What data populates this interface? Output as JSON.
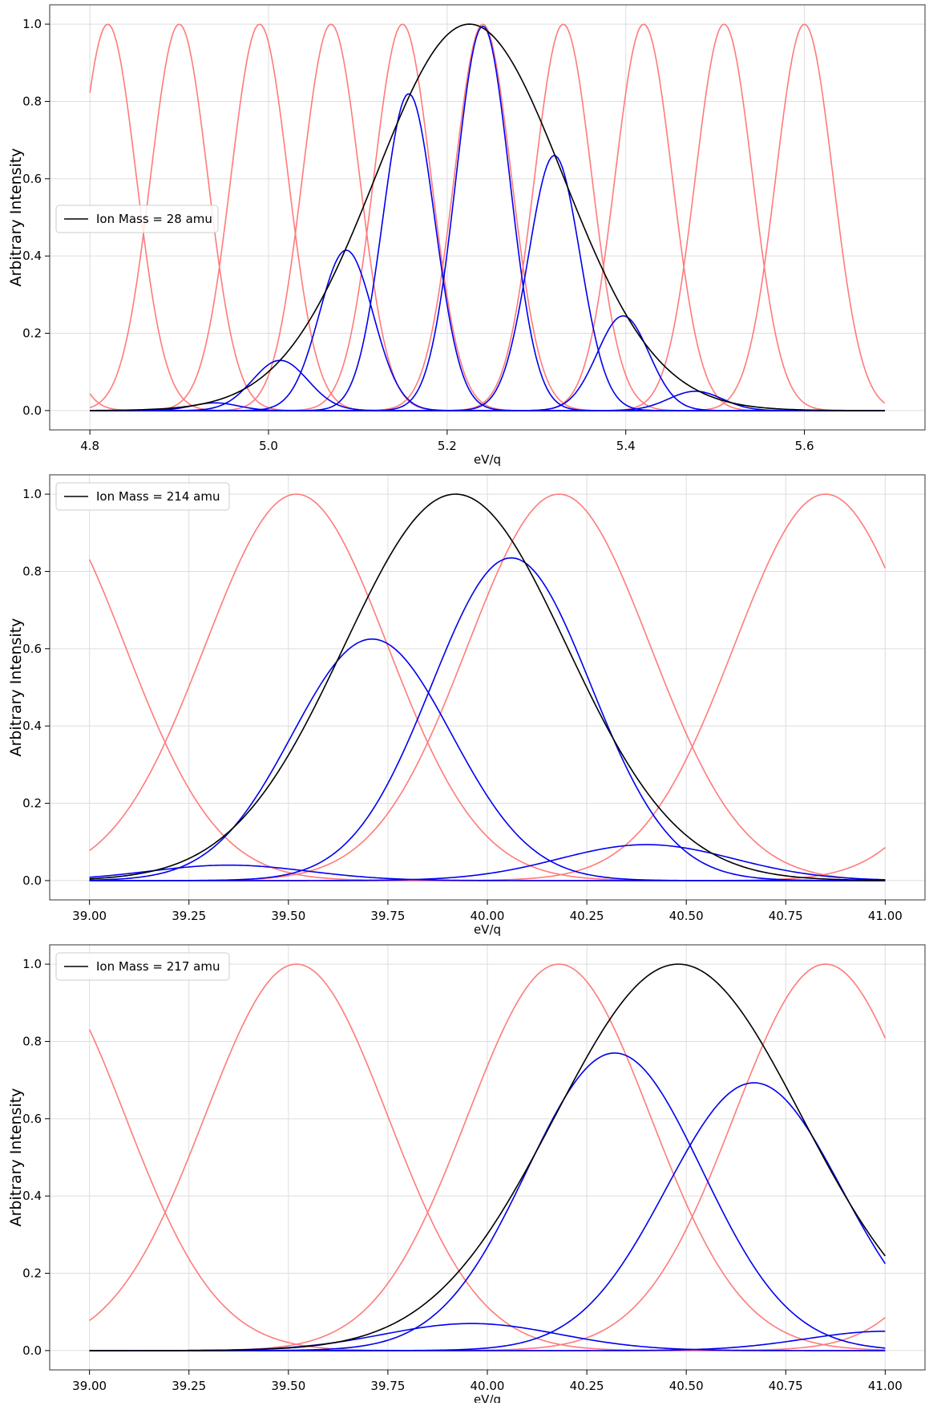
{
  "figure": {
    "ylabel": "Arbitrary Intensity",
    "xlabel": "eV/q"
  },
  "colors": {
    "reference": "#ff7b7b",
    "component": "#0000ee",
    "total": "#000000",
    "grid": "#dddddd",
    "axes": "#555555"
  },
  "chart_data": [
    {
      "type": "line",
      "xlabel": "eV/q",
      "ylabel": "Arbitrary Intensity",
      "xlim": [
        4.755,
        5.735
      ],
      "ylim": [
        -0.05,
        1.05
      ],
      "xticks": [
        4.8,
        5.0,
        5.2,
        5.4,
        5.6
      ],
      "xtick_labels": [
        "4.8",
        "5.0",
        "5.2",
        "5.4",
        "5.6"
      ],
      "yticks": [
        0.0,
        0.2,
        0.4,
        0.6,
        0.8,
        1.0
      ],
      "ytick_labels": [
        "0.0",
        "0.2",
        "0.4",
        "0.6",
        "0.8",
        "1.0"
      ],
      "grid": true,
      "legend": {
        "position": "center-left",
        "entries": [
          "Ion Mass = 28 amu"
        ]
      },
      "x_range": [
        4.8,
        5.69
      ],
      "reference_bins": {
        "centers": [
          4.72,
          4.82,
          4.9,
          4.99,
          5.07,
          5.15,
          5.24,
          5.33,
          5.42,
          5.51,
          5.6
        ],
        "sigma": 0.032,
        "peak": 1.0
      },
      "total": {
        "name": "Ion Mass = 28 amu",
        "center": 5.225,
        "sigma": 0.105,
        "peak": 1.0
      },
      "components": [
        {
          "center": 4.94,
          "sigma": 0.026,
          "peak": 0.02
        },
        {
          "center": 5.013,
          "sigma": 0.031,
          "peak": 0.13
        },
        {
          "center": 5.087,
          "sigma": 0.03,
          "peak": 0.415
        },
        {
          "center": 5.157,
          "sigma": 0.029,
          "peak": 0.82
        },
        {
          "center": 5.24,
          "sigma": 0.03,
          "peak": 0.995
        },
        {
          "center": 5.32,
          "sigma": 0.029,
          "peak": 0.66
        },
        {
          "center": 5.397,
          "sigma": 0.029,
          "peak": 0.245
        },
        {
          "center": 5.478,
          "sigma": 0.03,
          "peak": 0.05
        }
      ]
    },
    {
      "type": "line",
      "xlabel": "eV/q",
      "ylabel": "Arbitrary Intensity",
      "xlim": [
        38.9,
        41.1
      ],
      "ylim": [
        -0.05,
        1.05
      ],
      "xticks": [
        39.0,
        39.25,
        39.5,
        39.75,
        40.0,
        40.25,
        40.5,
        40.75,
        41.0
      ],
      "xtick_labels": [
        "39.00",
        "39.25",
        "39.50",
        "39.75",
        "40.00",
        "40.25",
        "40.50",
        "40.75",
        "41.00"
      ],
      "yticks": [
        0.0,
        0.2,
        0.4,
        0.6,
        0.8,
        1.0
      ],
      "ytick_labels": [
        "0.0",
        "0.2",
        "0.4",
        "0.6",
        "0.8",
        "1.0"
      ],
      "grid": true,
      "legend": {
        "position": "top-left",
        "entries": [
          "Ion Mass = 214 amu"
        ]
      },
      "x_range": [
        39.0,
        41.0
      ],
      "reference_bins": {
        "centers": [
          38.86,
          39.52,
          40.18,
          40.85,
          41.51
        ],
        "sigma": 0.23,
        "peak": 1.0
      },
      "total": {
        "name": "Ion Mass = 214 amu",
        "center": 39.92,
        "sigma": 0.28,
        "peak": 1.0
      },
      "components": [
        {
          "center": 39.35,
          "sigma": 0.2,
          "peak": 0.04
        },
        {
          "center": 39.71,
          "sigma": 0.2,
          "peak": 0.625
        },
        {
          "center": 40.06,
          "sigma": 0.2,
          "peak": 0.835
        },
        {
          "center": 40.4,
          "sigma": 0.22,
          "peak": 0.093
        }
      ]
    },
    {
      "type": "line",
      "xlabel": "eV/q",
      "ylabel": "Arbitrary Intensity",
      "xlim": [
        38.9,
        41.1
      ],
      "ylim": [
        -0.05,
        1.05
      ],
      "xticks": [
        39.0,
        39.25,
        39.5,
        39.75,
        40.0,
        40.25,
        40.5,
        40.75,
        41.0
      ],
      "xtick_labels": [
        "39.00",
        "39.25",
        "39.50",
        "39.75",
        "40.00",
        "40.25",
        "40.50",
        "40.75",
        "41.00"
      ],
      "yticks": [
        0.0,
        0.2,
        0.4,
        0.6,
        0.8,
        1.0
      ],
      "ytick_labels": [
        "0.0",
        "0.2",
        "0.4",
        "0.6",
        "0.8",
        "1.0"
      ],
      "grid": true,
      "legend": {
        "position": "top-left",
        "entries": [
          "Ion Mass = 217 amu"
        ]
      },
      "x_range": [
        39.0,
        41.0
      ],
      "reference_bins": {
        "centers": [
          38.86,
          39.52,
          40.18,
          40.85,
          41.51
        ],
        "sigma": 0.23,
        "peak": 1.0
      },
      "total": {
        "name": "Ion Mass = 217 amu",
        "center": 40.48,
        "sigma": 0.31,
        "peak": 1.0
      },
      "components": [
        {
          "center": 39.96,
          "sigma": 0.22,
          "peak": 0.07
        },
        {
          "center": 40.32,
          "sigma": 0.22,
          "peak": 0.77
        },
        {
          "center": 40.67,
          "sigma": 0.22,
          "peak": 0.693
        },
        {
          "center": 41.0,
          "sigma": 0.2,
          "peak": 0.05
        }
      ]
    }
  ]
}
